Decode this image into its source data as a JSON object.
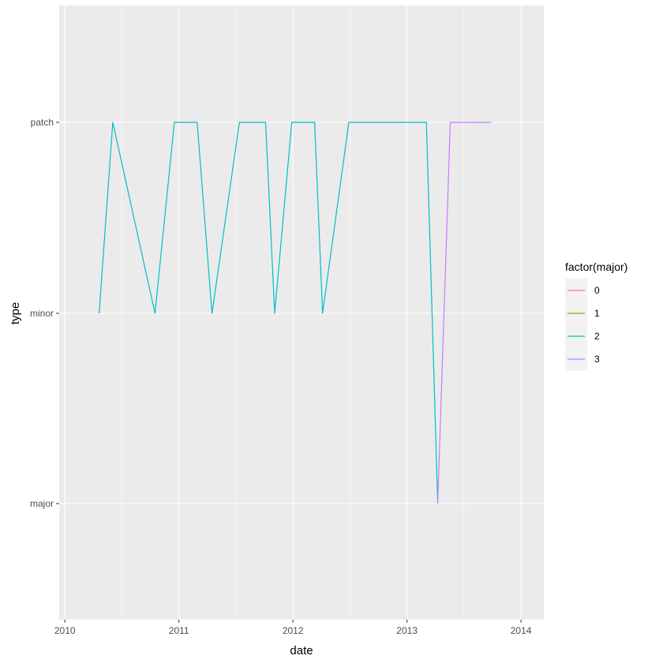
{
  "chart_data": {
    "type": "line",
    "xlabel": "date",
    "ylabel": "type",
    "x_ticks": [
      "2010",
      "2011",
      "2012",
      "2013",
      "2014"
    ],
    "y_categories": [
      "major",
      "minor",
      "patch"
    ],
    "xlim": [
      2009.95,
      2014.2
    ],
    "grid": true,
    "legend_title": "factor(major)",
    "legend_position": "right",
    "series": [
      {
        "name": "0",
        "color": "#F8766D",
        "points": []
      },
      {
        "name": "1",
        "color": "#7CAE00",
        "points": []
      },
      {
        "name": "2",
        "color": "#00BFC4",
        "points": [
          {
            "x": 2010.3,
            "y": "minor"
          },
          {
            "x": 2010.42,
            "y": "patch"
          },
          {
            "x": 2010.79,
            "y": "minor"
          },
          {
            "x": 2010.96,
            "y": "patch"
          },
          {
            "x": 2011.16,
            "y": "patch"
          },
          {
            "x": 2011.29,
            "y": "minor"
          },
          {
            "x": 2011.53,
            "y": "patch"
          },
          {
            "x": 2011.76,
            "y": "patch"
          },
          {
            "x": 2011.84,
            "y": "minor"
          },
          {
            "x": 2011.99,
            "y": "patch"
          },
          {
            "x": 2012.19,
            "y": "patch"
          },
          {
            "x": 2012.26,
            "y": "minor"
          },
          {
            "x": 2012.49,
            "y": "patch"
          },
          {
            "x": 2013.17,
            "y": "patch"
          },
          {
            "x": 2013.27,
            "y": "major"
          }
        ]
      },
      {
        "name": "3",
        "color": "#C77CFF",
        "points": [
          {
            "x": 2013.27,
            "y": "major"
          },
          {
            "x": 2013.38,
            "y": "patch"
          },
          {
            "x": 2013.74,
            "y": "patch"
          }
        ]
      }
    ]
  }
}
